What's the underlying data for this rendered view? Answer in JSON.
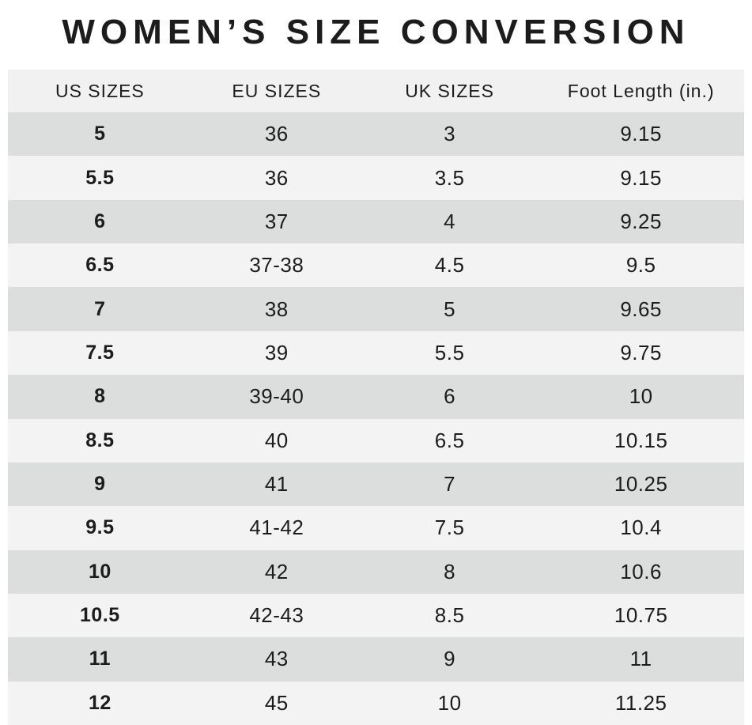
{
  "title": "WOMEN’S SIZE CONVERSION",
  "chart_data": {
    "type": "table",
    "title": "WOMEN’S SIZE CONVERSION",
    "columns": [
      "US SIZES",
      "EU SIZES",
      "UK SIZES",
      "Foot Length (in.)"
    ],
    "rows": [
      [
        "5",
        "36",
        "3",
        "9.15"
      ],
      [
        "5.5",
        "36",
        "3.5",
        "9.15"
      ],
      [
        "6",
        "37",
        "4",
        "9.25"
      ],
      [
        "6.5",
        "37-38",
        "4.5",
        "9.5"
      ],
      [
        "7",
        "38",
        "5",
        "9.65"
      ],
      [
        "7.5",
        "39",
        "5.5",
        "9.75"
      ],
      [
        "8",
        "39-40",
        "6",
        "10"
      ],
      [
        "8.5",
        "40",
        "6.5",
        "10.15"
      ],
      [
        "9",
        "41",
        "7",
        "10.25"
      ],
      [
        "9.5",
        "41-42",
        "7.5",
        "10.4"
      ],
      [
        "10",
        "42",
        "8",
        "10.6"
      ],
      [
        "10.5",
        "42-43",
        "8.5",
        "10.75"
      ],
      [
        "11",
        "43",
        "9",
        "11"
      ],
      [
        "12",
        "45",
        "10",
        "11.25"
      ]
    ],
    "layout": {
      "striped": true,
      "first_data_row_shade": "dark",
      "row_dark_color": "#dcdddd",
      "row_light_color": "#f2f3f2",
      "header_bg_color": "#f1f1f1",
      "text_color": "#1c1c1c",
      "page_bg_color": "#ffffff",
      "us_column_bold": true
    }
  }
}
